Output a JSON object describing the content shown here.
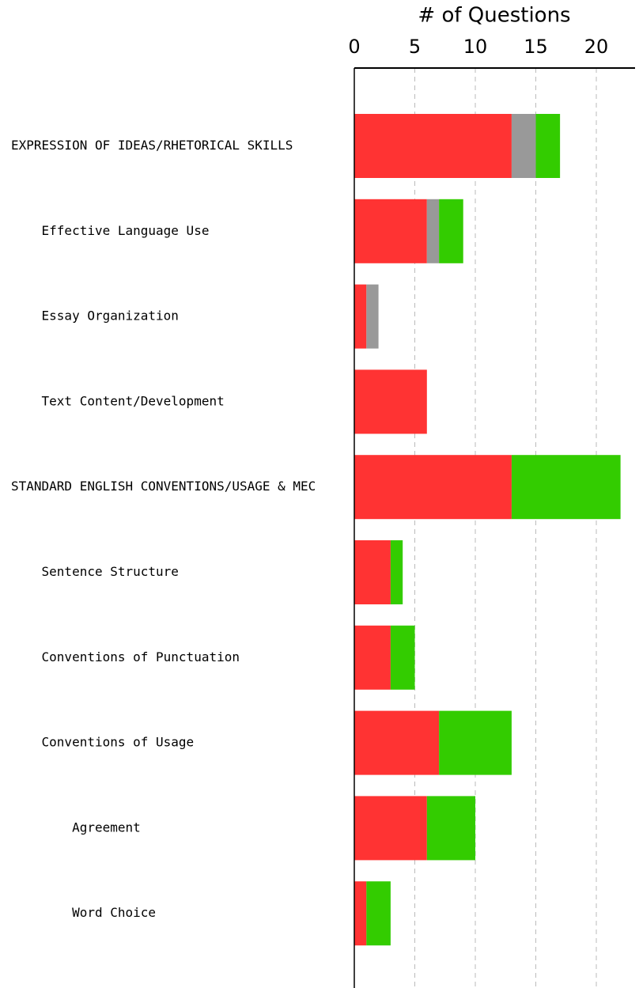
{
  "chart_data": {
    "type": "stacked_bar_horizontal",
    "title": "# of Questions",
    "categories": [
      "EXPRESSION OF IDEAS/RHETORICAL SKILLS",
      "    Effective Language Use",
      "    Essay Organization",
      "    Text Content/Development",
      "STANDARD ENGLISH CONVENTIONS/USAGE & MEC",
      "    Sentence Structure",
      "    Conventions of Punctuation",
      "    Conventions of Usage",
      "        Agreement",
      "        Word Choice"
    ],
    "series": [
      {
        "color": "#ff3333",
        "values": [
          13,
          6,
          1,
          6,
          13,
          3,
          3,
          7,
          6,
          1
        ]
      },
      {
        "color": "#999999",
        "values": [
          2,
          1,
          1,
          0,
          0,
          0,
          0,
          0,
          0,
          0
        ]
      },
      {
        "color": "#33cc00",
        "values": [
          2,
          2,
          0,
          0,
          9,
          1,
          2,
          6,
          4,
          2
        ]
      }
    ],
    "xlim": [
      0,
      23.2
    ],
    "xticks": [
      0,
      5,
      10,
      15,
      20
    ],
    "grid": true
  }
}
